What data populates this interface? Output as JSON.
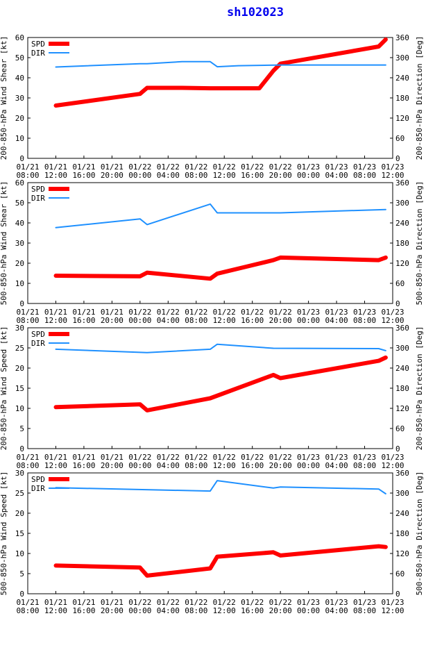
{
  "title": "sh102023",
  "colors": {
    "spd": "#ff0000",
    "dir": "#1e90ff"
  },
  "x_tick_labels": [
    [
      "01/21",
      "08:00"
    ],
    [
      "01/21",
      "12:00"
    ],
    [
      "01/21",
      "16:00"
    ],
    [
      "01/21",
      "20:00"
    ],
    [
      "01/22",
      "00:00"
    ],
    [
      "01/22",
      "04:00"
    ],
    [
      "01/22",
      "08:00"
    ],
    [
      "01/22",
      "12:00"
    ],
    [
      "01/22",
      "16:00"
    ],
    [
      "01/22",
      "20:00"
    ],
    [
      "01/23",
      "00:00"
    ],
    [
      "01/23",
      "04:00"
    ],
    [
      "01/23",
      "08:00"
    ],
    [
      "01/23",
      "12:00"
    ]
  ],
  "chart_data": [
    {
      "type": "line",
      "ylabel": "200-850-hPa Wind Shear [kt]",
      "y2label": "200-850-hPa Direction [Deg]",
      "ylim": [
        0,
        60
      ],
      "yticks": [
        0,
        10,
        20,
        30,
        40,
        50,
        60
      ],
      "y2lim": [
        0,
        360
      ],
      "y2ticks": [
        0,
        60,
        120,
        180,
        240,
        300,
        360
      ],
      "xlim": [
        0,
        52
      ],
      "series": [
        {
          "name": "SPD",
          "axis": "left",
          "x": [
            4,
            16,
            17,
            22,
            26,
            33,
            35,
            36,
            50,
            51
          ],
          "y": [
            26.2,
            32,
            35,
            35,
            34.8,
            34.8,
            43.5,
            47,
            55.5,
            59
          ]
        },
        {
          "name": "DIR",
          "axis": "right",
          "x": [
            4,
            16,
            17,
            22,
            26,
            27,
            30,
            36,
            51
          ],
          "y": [
            272,
            282,
            282,
            288,
            288,
            273,
            276,
            278,
            278
          ]
        }
      ]
    },
    {
      "type": "line",
      "ylabel": "500-850-hPa Wind Shear [kt]",
      "y2label": "500-850-hPa Direction [Deg]",
      "ylim": [
        0,
        60
      ],
      "yticks": [
        0,
        10,
        20,
        30,
        40,
        50,
        60
      ],
      "y2lim": [
        0,
        360
      ],
      "y2ticks": [
        0,
        60,
        120,
        180,
        240,
        300,
        360
      ],
      "xlim": [
        0,
        52
      ],
      "series": [
        {
          "name": "SPD",
          "axis": "left",
          "x": [
            4,
            16,
            17,
            26,
            27,
            35,
            36,
            50,
            51
          ],
          "y": [
            13.8,
            13.5,
            15.3,
            12.3,
            14.8,
            21.5,
            22.8,
            21.5,
            22.8
          ]
        },
        {
          "name": "DIR",
          "axis": "right",
          "x": [
            4,
            16,
            17,
            26,
            27,
            36,
            51
          ],
          "y": [
            226,
            252,
            235,
            296,
            270,
            270,
            280
          ]
        }
      ]
    },
    {
      "type": "line",
      "ylabel": "200-850-hPa Wind Speed [kt]",
      "y2label": "200-850-hPa Direction [Deg]",
      "ylim": [
        0,
        30
      ],
      "yticks": [
        0,
        5,
        10,
        15,
        20,
        25,
        30
      ],
      "y2lim": [
        0,
        360
      ],
      "y2ticks": [
        0,
        60,
        120,
        180,
        240,
        300,
        360
      ],
      "xlim": [
        0,
        52
      ],
      "series": [
        {
          "name": "SPD",
          "axis": "left",
          "x": [
            4,
            16,
            17,
            26,
            35,
            36,
            50,
            51
          ],
          "y": [
            10.3,
            11,
            9.5,
            12.5,
            18.3,
            17.5,
            21.8,
            22.6
          ]
        },
        {
          "name": "DIR",
          "axis": "right",
          "x": [
            4,
            17,
            26,
            27,
            35,
            50,
            51
          ],
          "y": [
            296,
            286,
            296,
            311,
            299,
            298,
            292
          ]
        }
      ]
    },
    {
      "type": "line",
      "ylabel": "500-850-hPa Wind Speed [kt]",
      "y2label": "500-850-hPa Direction [Deg]",
      "ylim": [
        0,
        30
      ],
      "yticks": [
        0,
        5,
        10,
        15,
        20,
        25,
        30
      ],
      "y2lim": [
        0,
        360
      ],
      "y2ticks": [
        0,
        60,
        120,
        180,
        240,
        300,
        360
      ],
      "xlim": [
        0,
        52
      ],
      "series": [
        {
          "name": "SPD",
          "axis": "left",
          "x": [
            4,
            16,
            17,
            26,
            27,
            35,
            36,
            50,
            51
          ],
          "y": [
            7,
            6.5,
            4.5,
            6.3,
            9.2,
            10.3,
            9.5,
            11.8,
            11.6
          ]
        },
        {
          "name": "DIR",
          "axis": "right",
          "x": [
            4,
            26,
            27,
            35,
            36,
            50,
            51
          ],
          "y": [
            316,
            306,
            337,
            315,
            318,
            312,
            298
          ]
        }
      ]
    }
  ]
}
